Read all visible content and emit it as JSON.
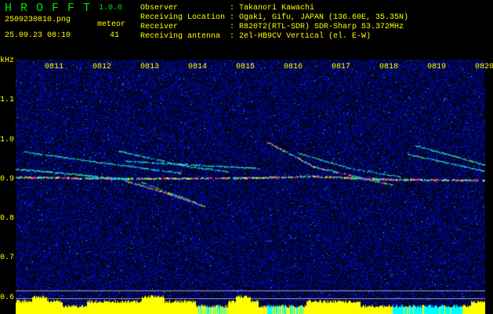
{
  "header": {
    "app_name": "H R O F F T",
    "version": "1.0.0",
    "filename": "2509230810.png",
    "datetime": "25.09.23 08:10",
    "meteor_label": "meteor",
    "meteor_count": "41"
  },
  "info": [
    {
      "label": "Observer",
      "value": "Takanori Kawachi"
    },
    {
      "label": "Receiving Location",
      "value": "Ogaki, Gifu, JAPAN (136.60E, 35.35N)"
    },
    {
      "label": "Receiver",
      "value": "R820T2(RTL-SDR) SDR-Sharp 53.372MHz"
    },
    {
      "label": "Receiving antenna",
      "value": "2el-HB9CV Vertical (el. E-W)"
    }
  ],
  "spectrogram": {
    "y_unit": "kHz",
    "y_ticks": [
      "1.1",
      "1.0",
      "0.9",
      "0.8",
      "0.7",
      "0.6"
    ],
    "x_ticks": [
      "0811",
      "0812",
      "0813",
      "0814",
      "0815",
      "0816",
      "0817",
      "0818",
      "0819",
      "0820"
    ],
    "colors": {
      "background": "#000000",
      "noise": "#1a2ad0",
      "text": "#ffff00",
      "histogram": "#ffff00",
      "histogram_alt": "#00ffff",
      "title": "#00e000"
    }
  }
}
